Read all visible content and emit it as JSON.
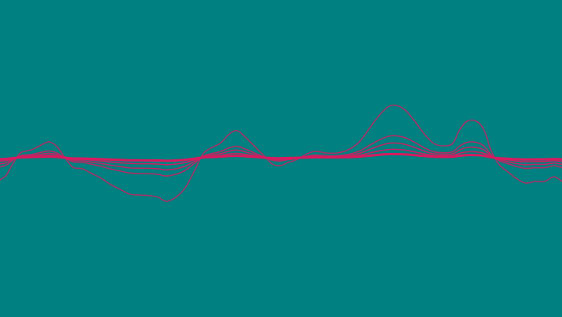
{
  "colors": {
    "background": "#008080",
    "wave": "#D81B60"
  },
  "visualization": {
    "type": "audio-waveform-visualizer",
    "layers": [
      {
        "name": "wave-layer-1",
        "amplitude": 1.0,
        "opacity": 0.75
      },
      {
        "name": "wave-layer-2",
        "amplitude": 0.42,
        "opacity": 0.8
      },
      {
        "name": "wave-layer-3",
        "amplitude": 0.28,
        "opacity": 0.85
      },
      {
        "name": "wave-layer-4",
        "amplitude": 0.16,
        "opacity": 0.9
      },
      {
        "name": "wave-layer-5",
        "amplitude": 0.07,
        "opacity": 1.0
      }
    ]
  }
}
